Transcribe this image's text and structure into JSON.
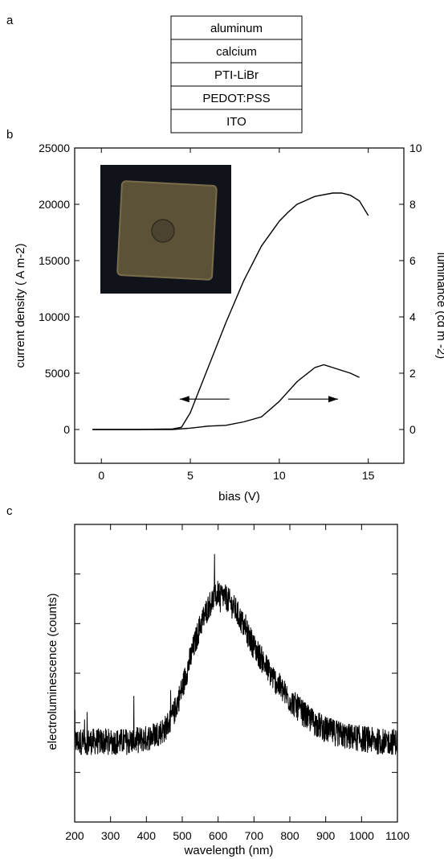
{
  "panels": {
    "a": "a",
    "b": "b",
    "c": "c"
  },
  "layer_stack": [
    "aluminum",
    "calcium",
    "PTI-LiBr",
    "PEDOT:PSS",
    "ITO"
  ],
  "inset": {
    "description_icon": "device-photo-inset"
  },
  "chart_data": [
    {
      "type": "line",
      "panel": "b",
      "xlabel": "bias (V)",
      "ylabel_left": "current density ( A m-2)",
      "ylabel_right": "luminance (cd m -2)",
      "xlim": [
        -1.5,
        17
      ],
      "ylim_left": [
        -3000,
        25000
      ],
      "ylim_right": [
        -1.2,
        10
      ],
      "x_ticks": [
        0,
        5,
        10,
        15
      ],
      "y_ticks_left": [
        0,
        5000,
        10000,
        15000,
        20000,
        25000
      ],
      "y_ticks_right": [
        0,
        2,
        4,
        6,
        8,
        10
      ],
      "grid": false,
      "series": [
        {
          "axis": "left",
          "x": [
            -0.5,
            2,
            4,
            4.5,
            5,
            5.5,
            6,
            7,
            8,
            9,
            10,
            10.5,
            11,
            12,
            13,
            13.5,
            14,
            14.5,
            15
          ],
          "y": [
            0,
            0,
            50,
            200,
            1500,
            3500,
            5500,
            9500,
            13200,
            16300,
            18500,
            19300,
            20000,
            20700,
            21000,
            21000,
            20800,
            20300,
            19000
          ]
        },
        {
          "axis": "right",
          "x": [
            -0.5,
            2,
            4,
            5,
            6,
            7,
            8,
            9,
            10,
            11,
            12,
            12.5,
            13,
            14,
            14.5
          ],
          "y": [
            0,
            0,
            0,
            0.05,
            0.12,
            0.15,
            0.27,
            0.45,
            1.0,
            1.7,
            2.2,
            2.3,
            2.2,
            2.0,
            1.85
          ]
        }
      ],
      "annotations": [
        {
          "type": "arrow",
          "direction": "left",
          "from": [
            7.2,
            2700
          ],
          "to": [
            4.4,
            2700
          ]
        },
        {
          "type": "arrow",
          "direction": "right",
          "from": [
            10.5,
            2700
          ],
          "to": [
            13.3,
            2700
          ]
        }
      ]
    },
    {
      "type": "line",
      "panel": "c",
      "xlabel": "wavelength (nm)",
      "ylabel": "electroluminescence (counts)",
      "xlim": [
        200,
        1100
      ],
      "ylim": [
        0,
        1
      ],
      "x_ticks": [
        200,
        300,
        400,
        500,
        600,
        700,
        800,
        900,
        1000,
        1100
      ],
      "x_tick_labels": [
        "200",
        "300",
        "400",
        "500",
        "600",
        "700",
        "800",
        "900",
        "1000",
        "1100"
      ],
      "y_ticks_unlabeled": true,
      "grid": false,
      "series": [
        {
          "style": "noisy-spectrum",
          "x": [
            200,
            250,
            300,
            350,
            400,
            450,
            475,
            500,
            525,
            550,
            575,
            600,
            625,
            650,
            675,
            700,
            725,
            750,
            800,
            850,
            900,
            950,
            1000,
            1050,
            1100
          ],
          "y": [
            0.27,
            0.27,
            0.27,
            0.27,
            0.28,
            0.31,
            0.36,
            0.45,
            0.56,
            0.66,
            0.73,
            0.77,
            0.75,
            0.71,
            0.65,
            0.59,
            0.54,
            0.49,
            0.41,
            0.35,
            0.31,
            0.29,
            0.28,
            0.27,
            0.27
          ]
        }
      ]
    }
  ]
}
